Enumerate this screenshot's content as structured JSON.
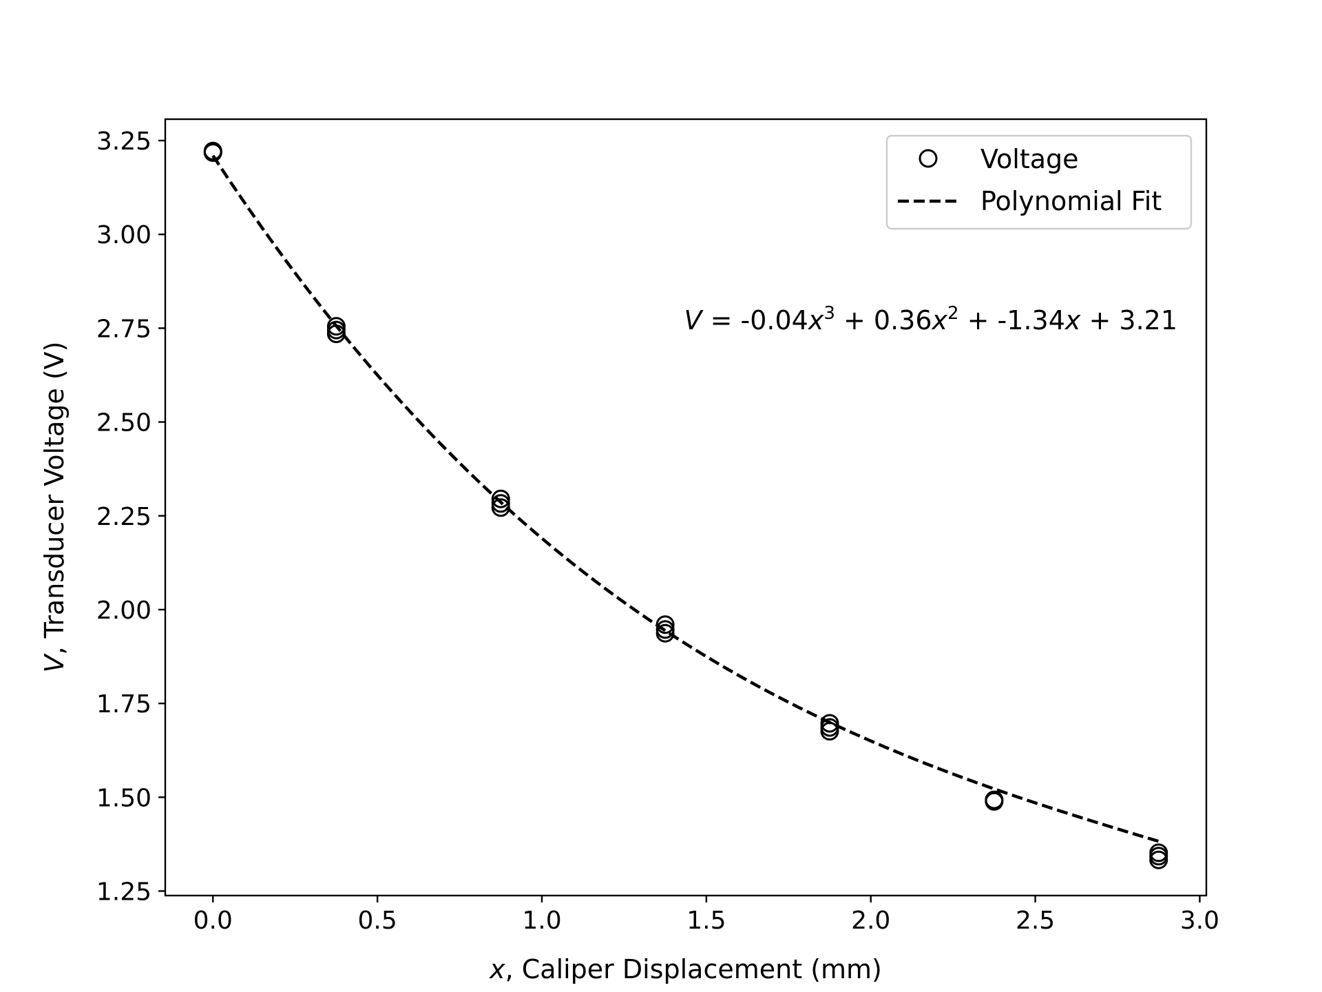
{
  "chart_data": {
    "type": "scatter",
    "xlabel_var": "x",
    "xlabel_rest": ", Caliper Displacement (mm)",
    "ylabel_var": "V",
    "ylabel_rest": ", Transducer Voltage (V)",
    "xlim": [
      -0.145,
      3.02
    ],
    "ylim": [
      1.238,
      3.307
    ],
    "x_ticks": [
      0.0,
      0.5,
      1.0,
      1.5,
      2.0,
      2.5,
      3.0
    ],
    "x_tick_labels": [
      "0.0",
      "0.5",
      "1.0",
      "1.5",
      "2.0",
      "2.5",
      "3.0"
    ],
    "y_ticks": [
      1.25,
      1.5,
      1.75,
      2.0,
      2.25,
      2.5,
      2.75,
      3.0,
      3.25
    ],
    "y_tick_labels": [
      "1.25",
      "1.50",
      "1.75",
      "2.00",
      "2.25",
      "2.50",
      "2.75",
      "3.00",
      "3.25"
    ],
    "grid": false,
    "legend_position": "top-right",
    "series": [
      {
        "name": "Voltage",
        "style": "open-circle-marker",
        "points": [
          [
            0.0,
            3.22
          ],
          [
            0.0,
            3.218
          ],
          [
            0.0,
            3.222
          ],
          [
            0.375,
            2.755
          ],
          [
            0.375,
            2.745
          ],
          [
            0.375,
            2.735
          ],
          [
            0.875,
            2.295
          ],
          [
            0.875,
            2.283
          ],
          [
            0.875,
            2.272
          ],
          [
            1.375,
            1.96
          ],
          [
            1.375,
            1.947
          ],
          [
            1.375,
            1.937
          ],
          [
            1.875,
            1.697
          ],
          [
            1.875,
            1.686
          ],
          [
            1.875,
            1.676
          ],
          [
            2.375,
            1.493
          ],
          [
            2.375,
            1.489
          ],
          [
            2.875,
            1.352
          ],
          [
            2.875,
            1.343
          ],
          [
            2.875,
            1.333
          ]
        ]
      },
      {
        "name": "Polynomial Fit",
        "style": "dashed-line",
        "coefficients": [
          -0.04,
          0.36,
          -1.34,
          3.21
        ],
        "x_range": [
          0.0,
          2.875
        ]
      }
    ],
    "annotation": {
      "V": "V",
      "eq": " = -0.04",
      "x1": "x",
      "p3": "3",
      "plus1": " + 0.36",
      "x2": "x",
      "p2": "2",
      "plus2": " + -1.34",
      "x3": "x",
      "tail": " + 3.21"
    },
    "colors": {
      "markers": "#000000",
      "fit_line": "#000000",
      "axes": "#000000"
    }
  }
}
